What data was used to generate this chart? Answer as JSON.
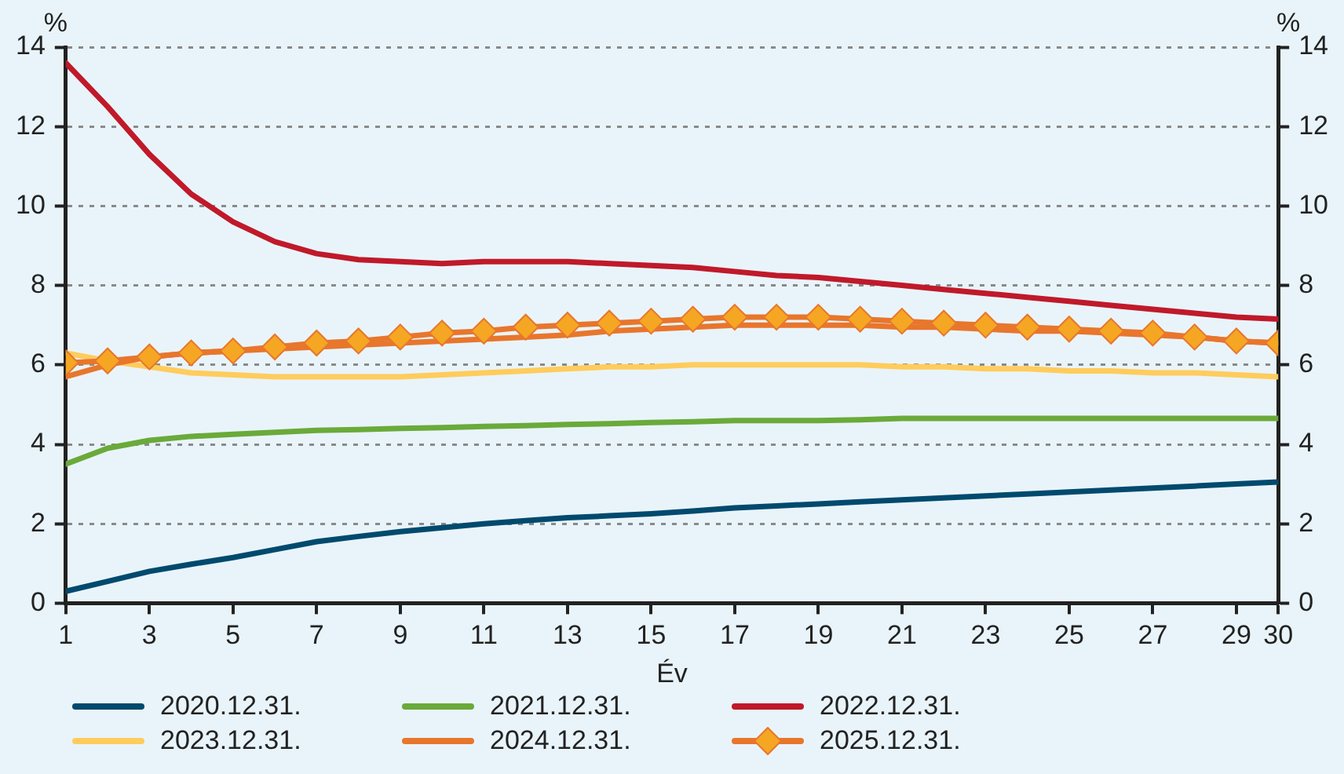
{
  "chart_data": {
    "type": "line",
    "xlabel": "Év",
    "ylabel": "%",
    "y2label": "%",
    "x": [
      1,
      2,
      3,
      4,
      5,
      6,
      7,
      8,
      9,
      10,
      11,
      12,
      13,
      14,
      15,
      16,
      17,
      18,
      19,
      20,
      21,
      22,
      23,
      24,
      25,
      26,
      27,
      28,
      29,
      30
    ],
    "xlim": [
      1,
      30
    ],
    "xticks": [
      1,
      3,
      5,
      7,
      9,
      11,
      13,
      15,
      17,
      19,
      21,
      23,
      25,
      27,
      29,
      30
    ],
    "ylim": [
      0,
      14
    ],
    "yticks": [
      0,
      2,
      4,
      6,
      8,
      10,
      12,
      14
    ],
    "y2lim": [
      0,
      14
    ],
    "y2ticks": [
      0,
      2,
      4,
      6,
      8,
      10,
      12,
      14
    ],
    "grid": "y",
    "legend": "bottom",
    "marker": "none",
    "line_style": "solid",
    "series": [
      {
        "name": "2020.12.31.",
        "color": "#004a6e",
        "values": [
          0.3,
          0.55,
          0.8,
          0.98,
          1.15,
          1.35,
          1.55,
          1.68,
          1.8,
          1.9,
          2.0,
          2.08,
          2.15,
          2.2,
          2.25,
          2.32,
          2.4,
          2.45,
          2.5,
          2.55,
          2.6,
          2.65,
          2.7,
          2.75,
          2.8,
          2.85,
          2.9,
          2.95,
          3.0,
          3.05
        ]
      },
      {
        "name": "2021.12.31.",
        "color": "#6aaa3a",
        "values": [
          3.5,
          3.9,
          4.1,
          4.2,
          4.25,
          4.3,
          4.35,
          4.37,
          4.4,
          4.42,
          4.45,
          4.47,
          4.5,
          4.52,
          4.55,
          4.57,
          4.6,
          4.6,
          4.6,
          4.62,
          4.65,
          4.65,
          4.65,
          4.65,
          4.65,
          4.65,
          4.65,
          4.65,
          4.65,
          4.65
        ]
      },
      {
        "name": "2022.12.31.",
        "color": "#c0192a",
        "values": [
          13.6,
          12.5,
          11.3,
          10.3,
          9.6,
          9.1,
          8.8,
          8.65,
          8.6,
          8.55,
          8.6,
          8.6,
          8.6,
          8.55,
          8.5,
          8.45,
          8.35,
          8.25,
          8.2,
          8.1,
          8.0,
          7.9,
          7.8,
          7.7,
          7.6,
          7.5,
          7.4,
          7.3,
          7.2,
          7.15
        ]
      },
      {
        "name": "2023.12.31.",
        "color": "#ffcc5c",
        "values": [
          6.3,
          6.1,
          5.95,
          5.8,
          5.75,
          5.7,
          5.7,
          5.7,
          5.7,
          5.75,
          5.8,
          5.85,
          5.9,
          5.95,
          5.95,
          6.0,
          6.0,
          6.0,
          6.0,
          6.0,
          5.95,
          5.95,
          5.9,
          5.9,
          5.85,
          5.85,
          5.8,
          5.8,
          5.75,
          5.7
        ]
      },
      {
        "name": "2024.12.31.",
        "color": "#e8762c",
        "values": [
          5.7,
          6.0,
          6.2,
          6.3,
          6.35,
          6.4,
          6.45,
          6.5,
          6.55,
          6.6,
          6.65,
          6.7,
          6.75,
          6.85,
          6.9,
          6.95,
          7.0,
          7.0,
          7.0,
          7.0,
          6.95,
          6.95,
          6.9,
          6.85,
          6.85,
          6.8,
          6.75,
          6.7,
          6.6,
          6.55
        ]
      },
      {
        "name": "2025.12.31.",
        "color": "#e8762c",
        "marker": "diamond",
        "values": [
          6.05,
          6.1,
          6.2,
          6.3,
          6.35,
          6.45,
          6.55,
          6.6,
          6.7,
          6.8,
          6.85,
          6.95,
          7.0,
          7.05,
          7.1,
          7.15,
          7.2,
          7.2,
          7.2,
          7.15,
          7.1,
          7.05,
          7.0,
          6.95,
          6.9,
          6.85,
          6.8,
          6.7,
          6.6,
          6.55
        ]
      }
    ]
  }
}
